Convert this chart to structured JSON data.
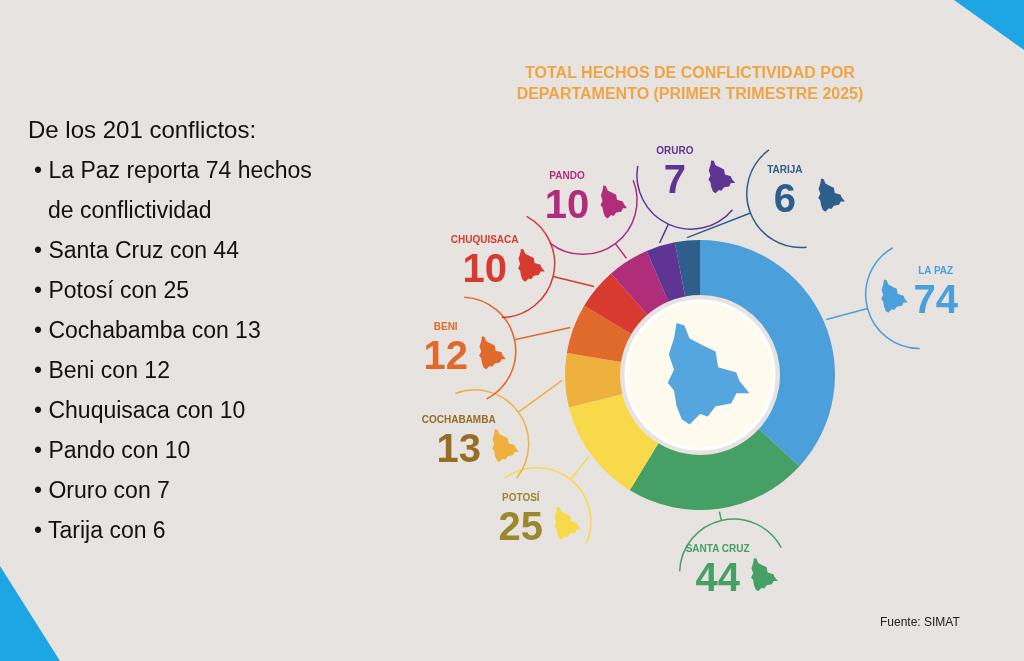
{
  "chart_data": {
    "type": "donut",
    "title": "TOTAL HECHOS DE CONFLICTIVIDAD POR DEPARTAMENTO (PRIMER TRIMESTRE 2025)",
    "categories": [
      "LA PAZ",
      "SANTA CRUZ",
      "POTOSÍ",
      "COCHABAMBA",
      "BENI",
      "CHUQUISACA",
      "PANDO",
      "ORURO",
      "TARIJA"
    ],
    "values": [
      74,
      44,
      25,
      13,
      12,
      10,
      10,
      7,
      6
    ],
    "colors": [
      "#4b9fda",
      "#46a065",
      "#f8d94a",
      "#eeb13e",
      "#e06a2c",
      "#d73a2e",
      "#b02d7c",
      "#5e3592",
      "#2e5e8b"
    ],
    "data_labels": true,
    "annotations": [
      "De los 201 conflictos:",
      "• La Paz reporta 74 hechos de conflictividad",
      "• Santa Cruz con 44",
      "• Potosí con 25",
      "• Cochabamba con 13",
      "• Beni con 12",
      "• Chuquisaca con 10",
      "• Pando con 10",
      "• Oruro con 7",
      "• Tarija con 6",
      "Fuente: SIMAT"
    ]
  }
}
